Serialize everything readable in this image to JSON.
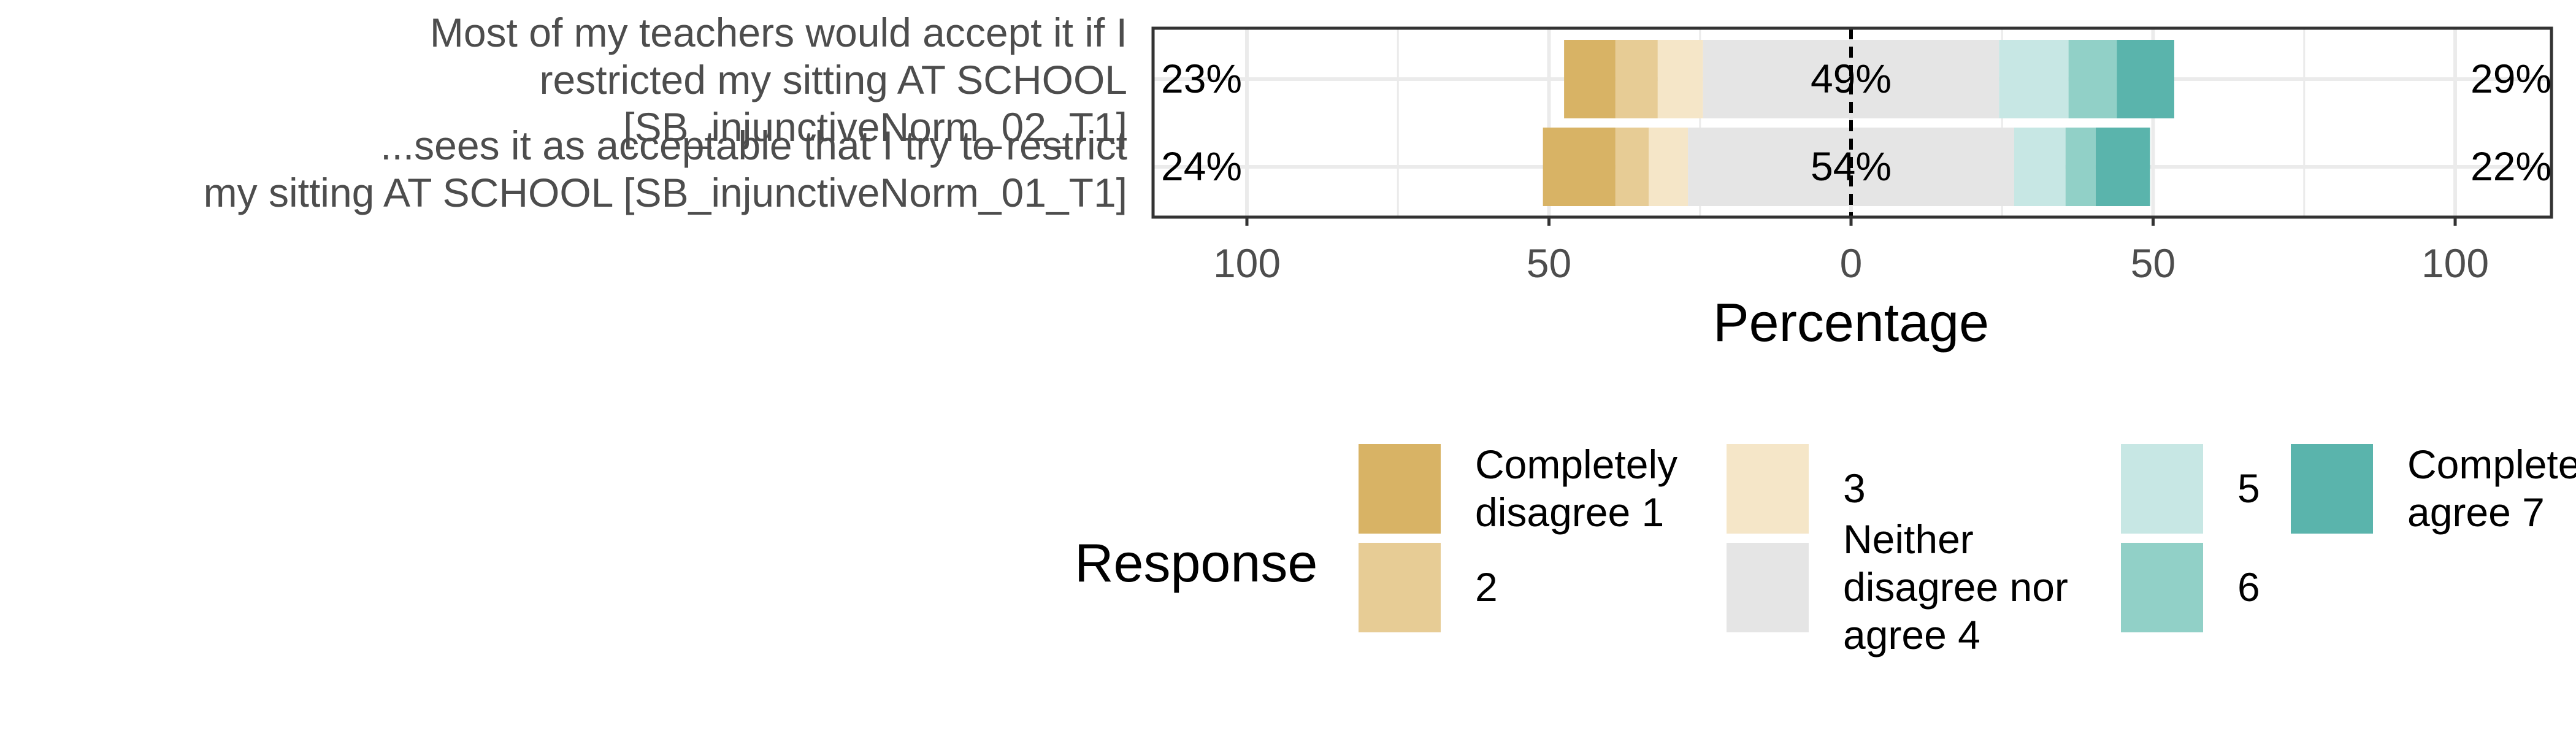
{
  "chart_data": {
    "type": "bar",
    "orientation": "horizontal-diverging",
    "xlabel": "Percentage",
    "xlim": [
      -100,
      100
    ],
    "x_tick_labels": [
      "100",
      "50",
      "0",
      "50",
      "100"
    ],
    "x_tick_values": [
      -100,
      -50,
      0,
      50,
      100
    ],
    "grid": true,
    "legend": {
      "title": "Response",
      "position": "bottom",
      "entries": [
        {
          "label_lines": [
            "Completely",
            "disagree 1"
          ],
          "color": "#D8B365"
        },
        {
          "label_lines": [
            "2"
          ],
          "color": "#E7CC95"
        },
        {
          "label_lines": [
            "3"
          ],
          "color": "#F5E6C8"
        },
        {
          "label_lines": [
            "Neither",
            "disagree nor",
            "agree 4"
          ],
          "color": "#E5E5E5"
        },
        {
          "label_lines": [
            "5"
          ],
          "color": "#C7E7E4"
        },
        {
          "label_lines": [
            "6"
          ],
          "color": "#91D0C7"
        },
        {
          "label_lines": [
            "Completely",
            "agree 7"
          ],
          "color": "#5AB4AC"
        }
      ]
    },
    "categories": [
      {
        "label_lines": [
          "Most of my teachers would accept it if I",
          "restricted my sitting AT SCHOOL",
          "[SB_injunctiveNorm_02_T1]"
        ],
        "values": [
          8.5,
          7,
          7.5,
          49,
          11.5,
          8,
          9.5
        ],
        "left_label": "23%",
        "center_label": "49%",
        "right_label": "29%"
      },
      {
        "label_lines": [
          "...sees it as acceptable that I try to restrict",
          "my sitting AT SCHOOL [SB_injunctiveNorm_01_T1]"
        ],
        "values": [
          12,
          5.5,
          6.5,
          54,
          8.5,
          5,
          9
        ],
        "left_label": "24%",
        "center_label": "54%",
        "right_label": "22%"
      }
    ]
  }
}
